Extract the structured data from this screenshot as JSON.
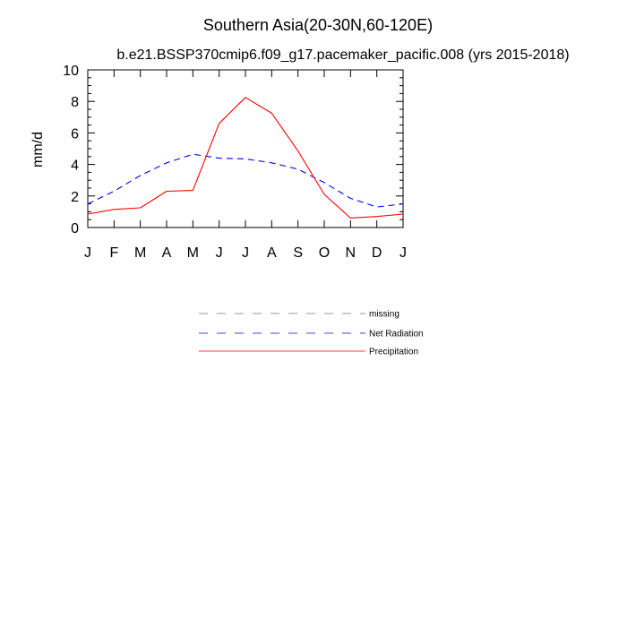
{
  "chart_data": {
    "type": "line",
    "title": "Southern Asia(20-30N,60-120E)",
    "subtitle": "b.e21.BSSP370cmip6.f09_g17.pacemaker_pacific.008 (yrs 2015-2018)",
    "xlabel": "",
    "ylabel": "mm/d",
    "categories": [
      "J",
      "F",
      "M",
      "A",
      "M",
      "J",
      "J",
      "A",
      "S",
      "O",
      "N",
      "D",
      "J"
    ],
    "ylim": [
      0,
      10
    ],
    "yticks": [
      0,
      2,
      4,
      6,
      8,
      10
    ],
    "grid": false,
    "series": [
      {
        "name": "Net Radiation",
        "style": "dashed",
        "color": "#0000ff",
        "values": [
          1.5,
          2.3,
          3.3,
          4.1,
          4.65,
          4.4,
          4.35,
          4.1,
          3.7,
          2.85,
          1.85,
          1.3,
          1.5
        ]
      },
      {
        "name": "Precipitation",
        "style": "solid",
        "color": "#ff0000",
        "values": [
          0.85,
          1.15,
          1.25,
          2.3,
          2.35,
          6.6,
          8.25,
          7.25,
          4.85,
          2.1,
          0.6,
          0.7,
          0.85
        ]
      }
    ],
    "legend": {
      "placement": "below",
      "entries": [
        {
          "label": "missing",
          "style": "dashed",
          "color": "#9a9a9a"
        },
        {
          "label": "Net Radiation",
          "style": "dashed",
          "color": "#0000ff"
        },
        {
          "label": "Precipitation",
          "style": "solid",
          "color": "#ff0000"
        }
      ]
    }
  }
}
